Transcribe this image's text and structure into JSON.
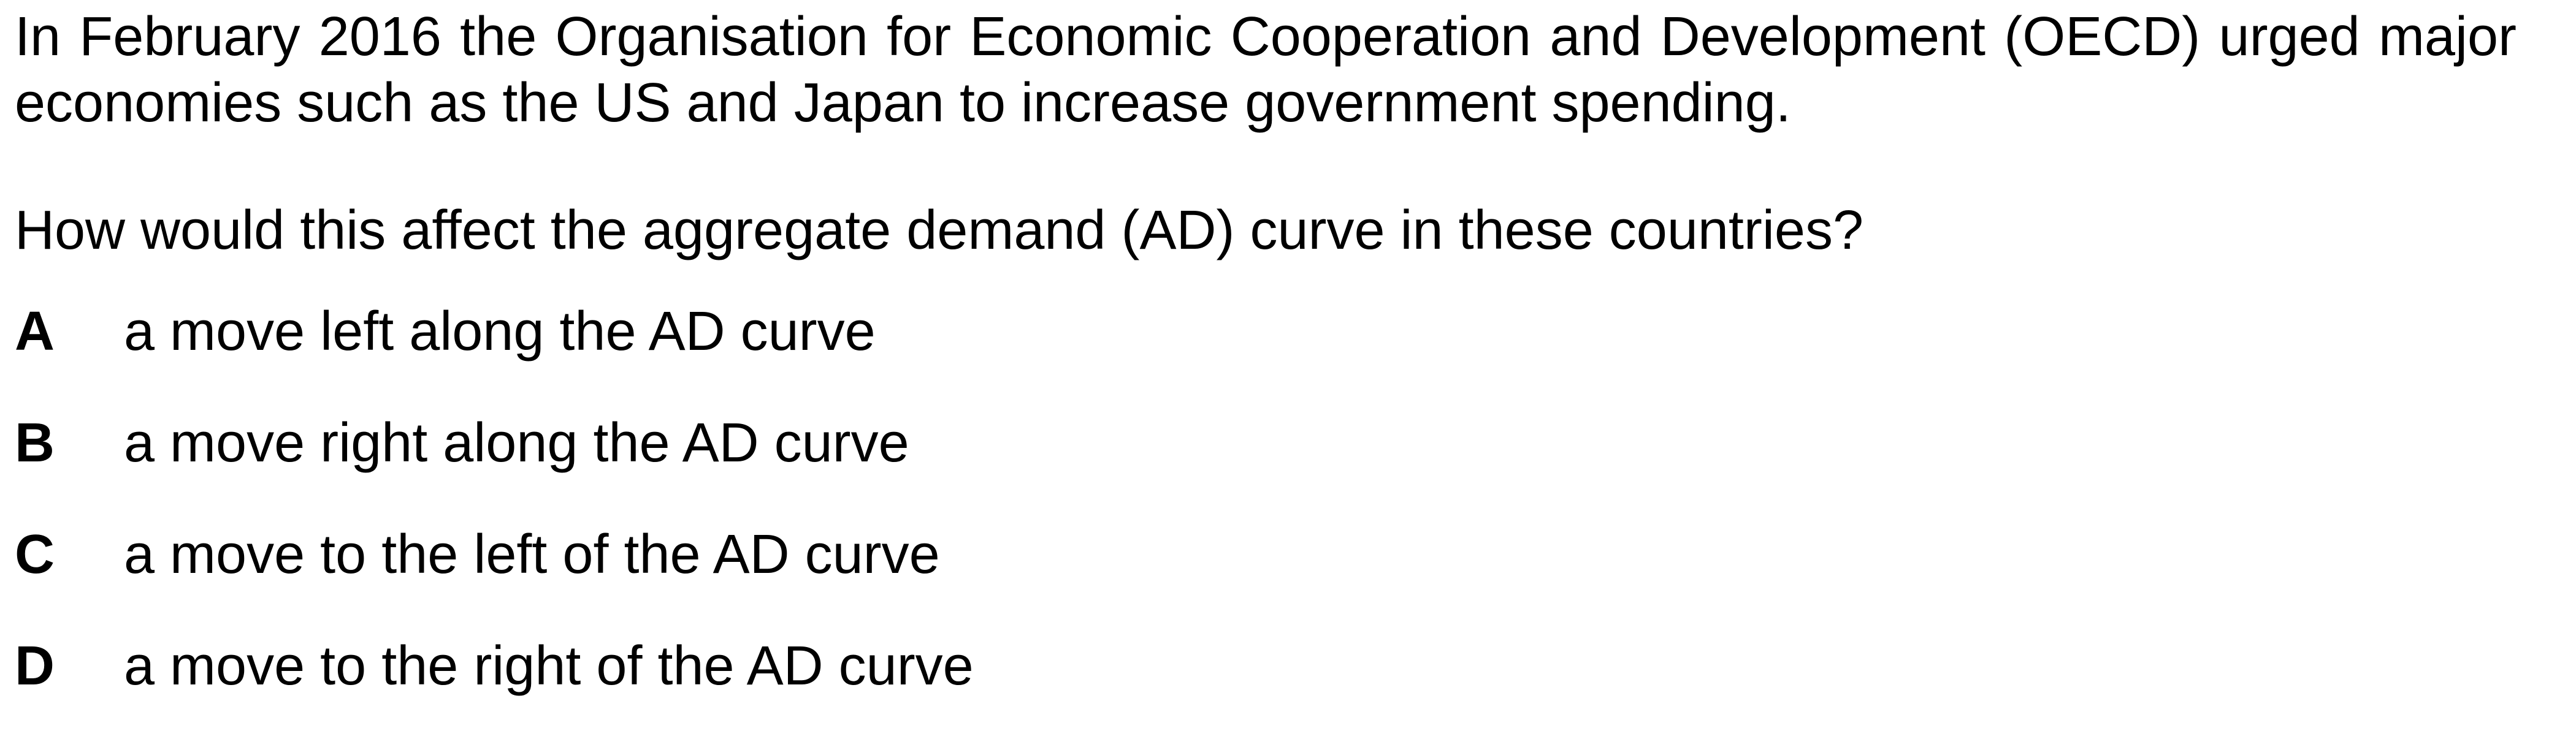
{
  "question": {
    "intro": "In February 2016 the Organisation for Economic Cooperation and Development (OECD) urged major economies such as the US and Japan to increase government spending.",
    "prompt": "How would this affect the aggregate demand (AD) curve in these countries?",
    "options": [
      {
        "letter": "A",
        "text": "a move left along the AD curve"
      },
      {
        "letter": "B",
        "text": "a move right along the AD curve"
      },
      {
        "letter": "C",
        "text": "a move to the left of the AD curve"
      },
      {
        "letter": "D",
        "text": "a move to the right of the AD curve"
      }
    ]
  }
}
